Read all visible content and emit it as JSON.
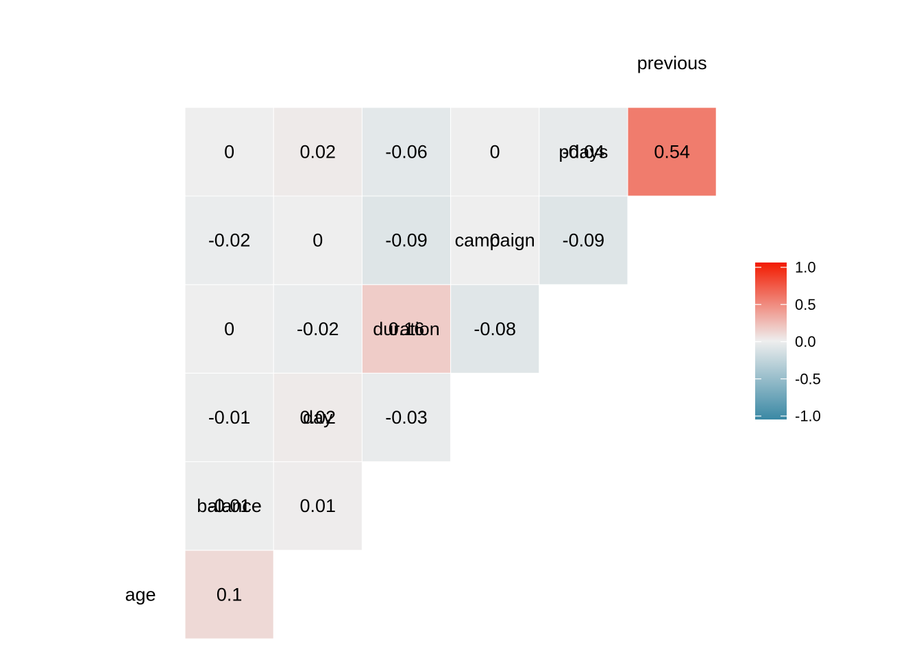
{
  "chart_data": {
    "type": "heatmap",
    "variables": [
      "age",
      "balance",
      "day",
      "duration",
      "campaign",
      "pdays",
      "previous"
    ],
    "cells": [
      {
        "row": "balance",
        "col": "age",
        "value": 0.1,
        "label": "0.1"
      },
      {
        "row": "day",
        "col": "age",
        "value": -0.01,
        "label": "-0.01"
      },
      {
        "row": "day",
        "col": "balance",
        "value": 0.01,
        "label": "0.01"
      },
      {
        "row": "duration",
        "col": "age",
        "value": -0.01,
        "label": "-0.01"
      },
      {
        "row": "duration",
        "col": "balance",
        "value": 0.02,
        "label": "0.02"
      },
      {
        "row": "duration",
        "col": "day",
        "value": -0.03,
        "label": "-0.03"
      },
      {
        "row": "campaign",
        "col": "age",
        "value": 0,
        "label": "0"
      },
      {
        "row": "campaign",
        "col": "balance",
        "value": -0.02,
        "label": "-0.02"
      },
      {
        "row": "campaign",
        "col": "day",
        "value": 0.16,
        "label": "0.16"
      },
      {
        "row": "campaign",
        "col": "duration",
        "value": -0.08,
        "label": "-0.08"
      },
      {
        "row": "pdays",
        "col": "age",
        "value": -0.02,
        "label": "-0.02"
      },
      {
        "row": "pdays",
        "col": "balance",
        "value": 0,
        "label": "0"
      },
      {
        "row": "pdays",
        "col": "day",
        "value": -0.09,
        "label": "-0.09"
      },
      {
        "row": "pdays",
        "col": "duration",
        "value": 0,
        "label": "0"
      },
      {
        "row": "pdays",
        "col": "campaign",
        "value": -0.09,
        "label": "-0.09"
      },
      {
        "row": "previous",
        "col": "age",
        "value": 0,
        "label": "0"
      },
      {
        "row": "previous",
        "col": "balance",
        "value": 0.02,
        "label": "0.02"
      },
      {
        "row": "previous",
        "col": "day",
        "value": -0.06,
        "label": "-0.06"
      },
      {
        "row": "previous",
        "col": "duration",
        "value": 0,
        "label": "0"
      },
      {
        "row": "previous",
        "col": "campaign",
        "value": -0.04,
        "label": "-0.04"
      },
      {
        "row": "previous",
        "col": "pdays",
        "value": 0.54,
        "label": "0.54"
      }
    ],
    "color_scale": {
      "low": "#3A88A4",
      "mid": "#EEEEEE",
      "high": "#F21A00",
      "limits": [
        -1,
        1
      ]
    },
    "legend": {
      "position": "right",
      "ticks": [
        "1.0",
        "0.5",
        "0.0",
        "-0.5",
        "-1.0"
      ],
      "tick_values": [
        1,
        0.5,
        0,
        -0.5,
        -1
      ]
    }
  }
}
